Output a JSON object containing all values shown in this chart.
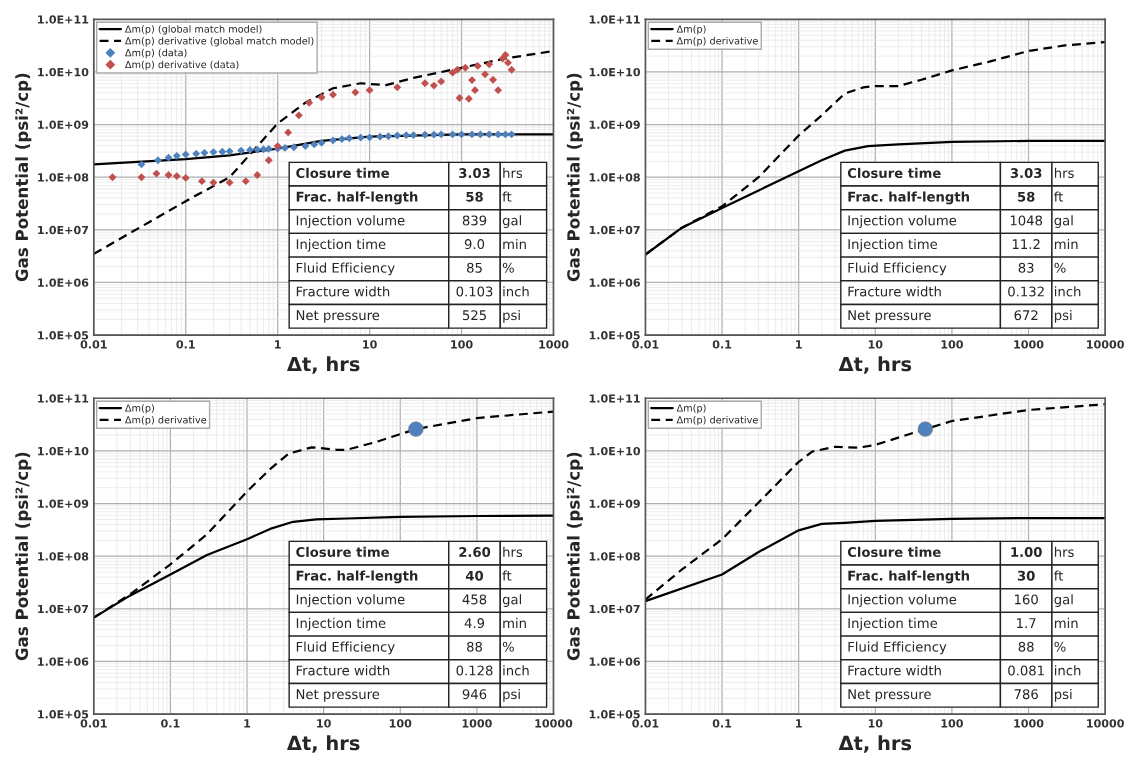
{
  "chart_data": [
    {
      "type": "line",
      "xlabel": "Δt, hrs",
      "ylabel": "Gas Potential (psi²/cp)",
      "log": "xy",
      "grid": true,
      "legend": "top left",
      "xlim": [
        0.01,
        1000
      ],
      "xticks": [
        0.01,
        0.1,
        1,
        10,
        100,
        1000
      ],
      "ylim": [
        100000,
        100000000000
      ],
      "yticks": [
        {
          "value": 100000,
          "label": "1.0E+05"
        },
        {
          "value": 1000000,
          "label": "1.0E+06"
        },
        {
          "value": 10000000,
          "label": "1.0E+07"
        },
        {
          "value": 100000000,
          "label": "1.0E+08"
        },
        {
          "value": 1000000000,
          "label": "1.0E+09"
        },
        {
          "value": 10000000000,
          "label": "1.0E+10"
        },
        {
          "value": 100000000000,
          "label": "1.0E+11"
        }
      ],
      "series": [
        {
          "name": "Δm(p) (global match model)",
          "line_style": "solid",
          "color": "#000000",
          "x": [
            0.01,
            0.1,
            0.3,
            1,
            3,
            10,
            100,
            1000
          ],
          "values": [
            175000000,
            220000000,
            260000000,
            350000000,
            490000000,
            590000000,
            650000000,
            650000000
          ]
        },
        {
          "name": "Δm(p) derivative (global match model)",
          "line_style": "dashed",
          "color": "#000000",
          "x": [
            0.01,
            0.1,
            0.3,
            1,
            2,
            4,
            8,
            15,
            30,
            100,
            300,
            1000
          ],
          "values": [
            3500000,
            35000000,
            100000000,
            1050000000,
            2600000000,
            4900000000,
            6100000000,
            5600000000,
            7700000000,
            12000000000,
            18000000000,
            25000000000
          ]
        },
        {
          "name": "Δm(p) (data)",
          "type": "scatter",
          "marker": "diamond",
          "color": "#4f81bd",
          "x": [
            0.033,
            0.05,
            0.065,
            0.08,
            0.1,
            0.13,
            0.16,
            0.2,
            0.25,
            0.3,
            0.4,
            0.5,
            0.6,
            0.7,
            0.8,
            1,
            1.2,
            1.5,
            2,
            2.5,
            3,
            4,
            5,
            6,
            8,
            10,
            13,
            16,
            20,
            25,
            30,
            40,
            50,
            60,
            80,
            100,
            130,
            160,
            200,
            250,
            300,
            350
          ],
          "values": [
            175000000,
            210000000,
            235000000,
            255000000,
            270000000,
            280000000,
            290000000,
            300000000,
            305000000,
            310000000,
            320000000,
            330000000,
            335000000,
            340000000,
            345000000,
            350000000,
            360000000,
            370000000,
            390000000,
            420000000,
            450000000,
            500000000,
            530000000,
            550000000,
            565000000,
            570000000,
            590000000,
            600000000,
            620000000,
            630000000,
            630000000,
            640000000,
            645000000,
            650000000,
            650000000,
            650000000,
            650000000,
            650000000,
            650000000,
            650000000,
            650000000,
            650000000
          ]
        },
        {
          "name": "Δm(p) derivative (data)",
          "type": "scatter",
          "marker": "diamond",
          "color": "#c0504d",
          "x": [
            0.016,
            0.033,
            0.048,
            0.065,
            0.08,
            0.1,
            0.15,
            0.2,
            0.3,
            0.45,
            0.6,
            0.8,
            1,
            1.3,
            1.7,
            2.2,
            3,
            4,
            7,
            10,
            20,
            40,
            50,
            60,
            80,
            90,
            95,
            110,
            120,
            130,
            140,
            150,
            180,
            200,
            220,
            250,
            280,
            300,
            320,
            350
          ],
          "values": [
            100000000,
            100000000,
            117000000,
            110000000,
            105000000,
            97000000,
            84000000,
            79000000,
            79000000,
            84000000,
            110000000,
            210000000,
            390000000,
            710000000,
            1500000000,
            2600000000,
            3300000000,
            3700000000,
            4100000000,
            4500000000,
            5100000000,
            6100000000,
            5500000000,
            6600000000,
            9700000000,
            11000000000,
            3200000000,
            12000000000,
            3100000000,
            7000000000,
            4500000000,
            13000000000,
            9000000000,
            14000000000,
            7100000000,
            4500000000,
            18000000000,
            21000000000,
            15000000000,
            11000000000
          ]
        }
      ],
      "annotations": [
        "Closure time",
        "3.03",
        "hrs",
        "Frac. half-length",
        "58",
        "ft",
        "Injection volume",
        "839",
        "gal",
        "Injection time",
        "9.0",
        "min",
        "Fluid Efficiency",
        "85",
        "%",
        "Fracture width",
        "0.103",
        "inch",
        "Net pressure",
        "525",
        "psi"
      ]
    },
    {
      "type": "line",
      "xlabel": "Δt, hrs",
      "ylabel": "Gas Potential (psi²/cp)",
      "log": "xy",
      "grid": true,
      "legend": "top left",
      "xlim": [
        0.01,
        10000
      ],
      "xticks": [
        0.01,
        0.1,
        1,
        10,
        100,
        1000,
        10000
      ],
      "ylim": [
        100000,
        100000000000
      ],
      "yticks": [
        {
          "value": 100000,
          "label": "1.0E+05"
        },
        {
          "value": 1000000,
          "label": "1.0E+06"
        },
        {
          "value": 10000000,
          "label": "1.0E+07"
        },
        {
          "value": 100000000,
          "label": "1.0E+08"
        },
        {
          "value": 1000000000,
          "label": "1.0E+09"
        },
        {
          "value": 10000000000,
          "label": "1.0E+10"
        },
        {
          "value": 100000000000,
          "label": "1.0E+11"
        }
      ],
      "series": [
        {
          "name": "Δm(p)",
          "line_style": "solid",
          "color": "#000000",
          "x": [
            0.01,
            0.03,
            0.1,
            0.3,
            1,
            2,
            4,
            8,
            20,
            100,
            1000,
            10000
          ],
          "values": [
            3400000,
            11000000,
            26000000,
            56000000,
            130000000,
            210000000,
            320000000,
            390000000,
            420000000,
            470000000,
            490000000,
            490000000
          ]
        },
        {
          "name": "Δm(p) derivative",
          "line_style": "dashed",
          "color": "#000000",
          "x": [
            0.01,
            0.03,
            0.1,
            0.3,
            1,
            2,
            4,
            7,
            10,
            20,
            40,
            100,
            300,
            1000,
            3000,
            10000
          ],
          "values": [
            3400000,
            11000000,
            28000000,
            100000000,
            620000000,
            1500000000,
            3900000000,
            5100000000,
            5400000000,
            5400000000,
            7100000000,
            10700000000,
            15500000000,
            25000000000,
            32000000000,
            37000000000
          ]
        }
      ],
      "annotations": [
        "Closure time",
        "3.03",
        "hrs",
        "Frac. half-length",
        "58",
        "ft",
        "Injection volume",
        "1048",
        "gal",
        "Injection time",
        "11.2",
        "min",
        "Fluid Efficiency",
        "83",
        "%",
        "Fracture width",
        "0.132",
        "inch",
        "Net pressure",
        "672",
        "psi"
      ]
    },
    {
      "type": "line",
      "xlabel": "Δt, hrs",
      "ylabel": "Gas Potential (psi²/cp)",
      "log": "xy",
      "grid": true,
      "legend": "top left",
      "xlim": [
        0.01,
        10000
      ],
      "xticks": [
        0.01,
        0.1,
        1,
        10,
        100,
        1000,
        10000
      ],
      "ylim": [
        100000,
        100000000000
      ],
      "yticks": [
        {
          "value": 100000,
          "label": "1.0E+05"
        },
        {
          "value": 1000000,
          "label": "1.0E+06"
        },
        {
          "value": 10000000,
          "label": "1.0E+07"
        },
        {
          "value": 100000000,
          "label": "1.0E+08"
        },
        {
          "value": 1000000000,
          "label": "1.0E+09"
        },
        {
          "value": 10000000000,
          "label": "1.0E+10"
        },
        {
          "value": 100000000000,
          "label": "1.0E+11"
        }
      ],
      "series": [
        {
          "name": "Δm(p)",
          "line_style": "solid",
          "color": "#000000",
          "x": [
            0.01,
            0.03,
            0.1,
            0.3,
            1,
            2,
            4,
            8,
            20,
            100,
            1000,
            10000
          ],
          "values": [
            6800000,
            18000000,
            45000000,
            105000000,
            210000000,
            330000000,
            450000000,
            500000000,
            520000000,
            560000000,
            580000000,
            590000000
          ]
        },
        {
          "name": "Δm(p) derivative",
          "line_style": "dashed",
          "color": "#000000",
          "x": [
            0.01,
            0.03,
            0.1,
            0.3,
            1,
            2,
            3.5,
            7,
            15,
            20,
            50,
            160,
            1000,
            10000
          ],
          "values": [
            6800000,
            19000000,
            70000000,
            260000000,
            1700000000,
            4500000000,
            8900000000,
            11700000000,
            10500000000,
            10500000000,
            15000000000,
            26000000000,
            42000000000,
            56000000000
          ]
        },
        {
          "type": "scatter",
          "marker": "circle",
          "color": "#4f81bd",
          "x": [
            160
          ],
          "values": [
            26000000000
          ]
        }
      ],
      "annotations": [
        "Closure time",
        "2.60",
        "hrs",
        "Frac. half-length",
        "40",
        "ft",
        "Injection volume",
        "458",
        "gal",
        "Injection time",
        "4.9",
        "min",
        "Fluid Efficiency",
        "88",
        "%",
        "Fracture width",
        "0.128",
        "inch",
        "Net pressure",
        "946",
        "psi"
      ]
    },
    {
      "type": "line",
      "xlabel": "Δt, hrs",
      "ylabel": "Gas Potential (psi²/cp)",
      "log": "xy",
      "grid": true,
      "legend": "top left",
      "xlim": [
        0.01,
        10000
      ],
      "xticks": [
        0.01,
        0.1,
        1,
        10,
        100,
        1000,
        10000
      ],
      "ylim": [
        100000,
        100000000000
      ],
      "yticks": [
        {
          "value": 100000,
          "label": "1.0E+05"
        },
        {
          "value": 1000000,
          "label": "1.0E+06"
        },
        {
          "value": 10000000,
          "label": "1.0E+07"
        },
        {
          "value": 100000000,
          "label": "1.0E+08"
        },
        {
          "value": 1000000000,
          "label": "1.0E+09"
        },
        {
          "value": 10000000000,
          "label": "1.0E+10"
        },
        {
          "value": 100000000000,
          "label": "1.0E+11"
        }
      ],
      "series": [
        {
          "name": "Δm(p)",
          "line_style": "solid",
          "color": "#000000",
          "x": [
            0.01,
            0.1,
            0.3,
            1,
            2,
            4,
            10,
            100,
            1000,
            10000
          ],
          "values": [
            14000000,
            45000000,
            120000000,
            310000000,
            410000000,
            430000000,
            470000000,
            510000000,
            530000000,
            530000000
          ]
        },
        {
          "name": "Δm(p) derivative",
          "line_style": "dashed",
          "color": "#000000",
          "x": [
            0.01,
            0.03,
            0.1,
            0.3,
            1,
            1.5,
            3,
            6,
            10,
            45,
            100,
            1000,
            10000
          ],
          "values": [
            15000000,
            56000000,
            210000000,
            1050000000,
            6200000000,
            9700000000,
            12000000000,
            11500000000,
            13000000000,
            26000000000,
            37000000000,
            60000000000,
            77000000000
          ]
        },
        {
          "type": "scatter",
          "marker": "circle",
          "color": "#4f81bd",
          "x": [
            45
          ],
          "values": [
            26000000000
          ]
        }
      ],
      "annotations": [
        "Closure time",
        "1.00",
        "hrs",
        "Frac. half-length",
        "30",
        "ft",
        "Injection volume",
        "160",
        "gal",
        "Injection time",
        "1.7",
        "min",
        "Fluid Efficiency",
        "88",
        "%",
        "Fracture width",
        "0.081",
        "inch",
        "Net pressure",
        "786",
        "psi"
      ]
    }
  ]
}
